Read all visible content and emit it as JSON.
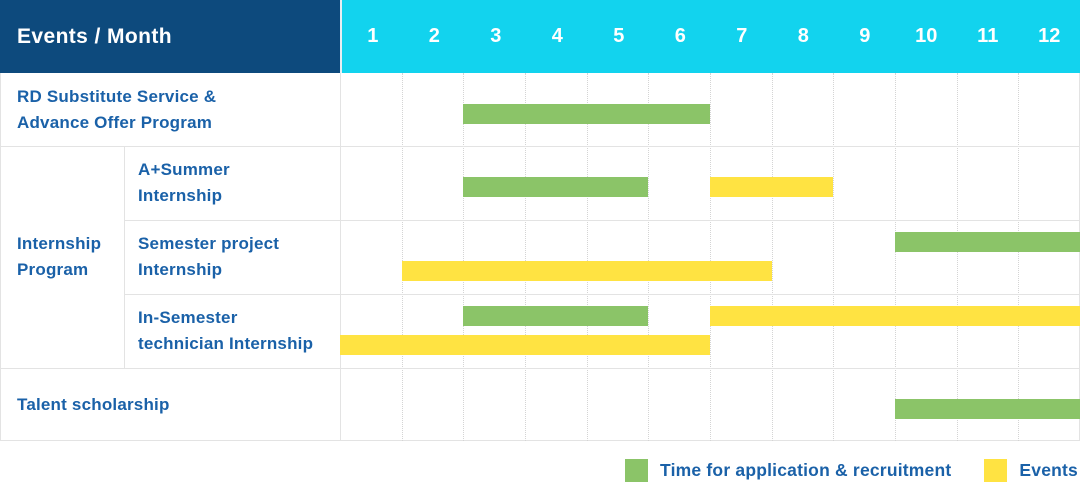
{
  "header": {
    "title": "Events / Month",
    "months": [
      "1",
      "2",
      "3",
      "4",
      "5",
      "6",
      "7",
      "8",
      "9",
      "10",
      "11",
      "12"
    ]
  },
  "colors": {
    "header_bg": "#0D4A7D",
    "month_header_bg": "#12D3EE",
    "header_text": "#FFFFFF",
    "label_text": "#1A61A8",
    "recruitment_bar": "#8BC468",
    "event_bar": "#FFE342",
    "grid_line": "#E3E3E3"
  },
  "legend": [
    {
      "type": "recruitment",
      "label": "Time for application & recruitment"
    },
    {
      "type": "event",
      "label": "Events"
    }
  ],
  "chart_data": {
    "type": "bar",
    "subtype": "gantt-schedule",
    "title": "Events / Month",
    "x": {
      "label": "Month",
      "ticks": [
        1,
        2,
        3,
        4,
        5,
        6,
        7,
        8,
        9,
        10,
        11,
        12
      ],
      "range": [
        1,
        12
      ]
    },
    "legend_position": "bottom-right",
    "grid": "vertical-dotted-per-month",
    "series_legend": [
      {
        "name": "Time for application & recruitment",
        "color": "#8BC468"
      },
      {
        "name": "Events",
        "color": "#FFE342"
      }
    ],
    "group_label": "Internship Program",
    "group_label_lines": [
      "Internship",
      "Program"
    ],
    "rows": [
      {
        "group": "",
        "label": "RD Substitute Service & Advance Offer Program",
        "label_lines": [
          "RD Substitute Service &",
          "Advance Offer Program"
        ],
        "bars": [
          {
            "series": "recruitment",
            "start_month": 3,
            "end_month": 6,
            "lane": "single"
          }
        ]
      },
      {
        "group": "Internship Program",
        "label": "A+Summer Internship",
        "label_lines": [
          "A+Summer",
          "Internship"
        ],
        "bars": [
          {
            "series": "recruitment",
            "start_month": 3,
            "end_month": 5,
            "lane": "single"
          },
          {
            "series": "event",
            "start_month": 7,
            "end_month": 8,
            "lane": "single"
          }
        ]
      },
      {
        "group": "Internship Program",
        "label": "Semester project Internship",
        "label_lines": [
          "Semester project",
          "Internship"
        ],
        "bars": [
          {
            "series": "recruitment",
            "start_month": 10,
            "end_month": 12,
            "lane": "top"
          },
          {
            "series": "event",
            "start_month": 2,
            "end_month": 7,
            "lane": "bottom"
          }
        ]
      },
      {
        "group": "Internship Program",
        "label": "In-Semester technician Internship",
        "label_lines": [
          "In-Semester",
          "technician Internship"
        ],
        "bars": [
          {
            "series": "recruitment",
            "start_month": 3,
            "end_month": 5,
            "lane": "top"
          },
          {
            "series": "event",
            "start_month": 7,
            "end_month": 12,
            "lane": "top"
          },
          {
            "series": "event",
            "start_month": 1,
            "end_month": 6,
            "lane": "bottom"
          }
        ]
      },
      {
        "group": "",
        "label": "Talent scholarship",
        "label_lines": [
          "Talent scholarship"
        ],
        "bars": [
          {
            "series": "recruitment",
            "start_month": 10,
            "end_month": 12,
            "lane": "single"
          }
        ]
      }
    ]
  }
}
